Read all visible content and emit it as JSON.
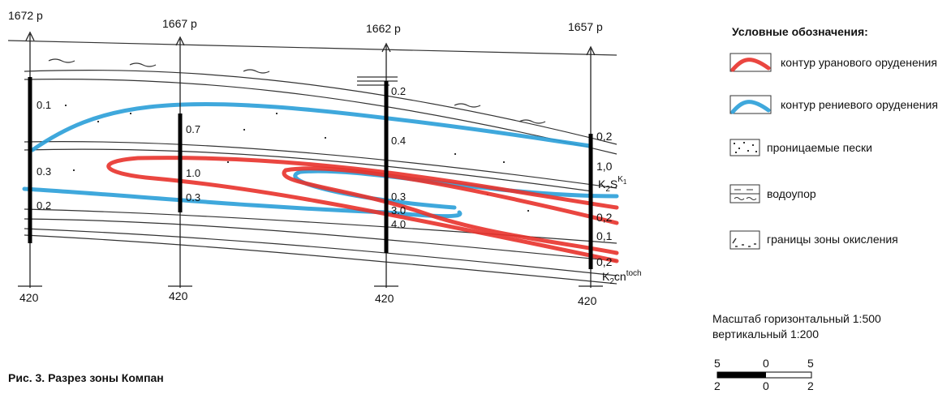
{
  "section": {
    "wells": [
      {
        "label": "1672 р",
        "depth": "420",
        "intervals": [
          "0.1",
          "0.3",
          "0.2"
        ]
      },
      {
        "label": "1667 р",
        "depth": "420",
        "intervals": [
          "0.7",
          "1.0",
          "0.3"
        ]
      },
      {
        "label": "1662 р",
        "depth": "420",
        "intervals": [
          "0.2",
          "0.4",
          "0.3",
          "3.0",
          "4.0"
        ]
      },
      {
        "label": "1657 р",
        "depth": "420",
        "intervals": [
          "0,2",
          "1,0",
          "0,2",
          "0,1",
          "0,2"
        ]
      }
    ],
    "formations": [
      {
        "base": "K",
        "sub": "2",
        "main": "S",
        "sup": "K",
        "supsub": "1"
      },
      {
        "base": "K",
        "sub": "2",
        "main": "cn",
        "sup": "toch"
      }
    ]
  },
  "legend": {
    "title": "Условные обозначения:",
    "items": [
      "контур уранового оруденения",
      "контур рениевого оруденения",
      "проницаемые пески",
      "водоупор",
      "границы зоны окисления"
    ]
  },
  "scale": {
    "horizontal": "Масштаб горизонтальный 1:500",
    "vertical": "вертикальный 1:200",
    "top": [
      "5",
      "0",
      "5"
    ],
    "bottom": [
      "2",
      "0",
      "2"
    ]
  },
  "caption": "Рис. 3. Разрез зоны Компан"
}
